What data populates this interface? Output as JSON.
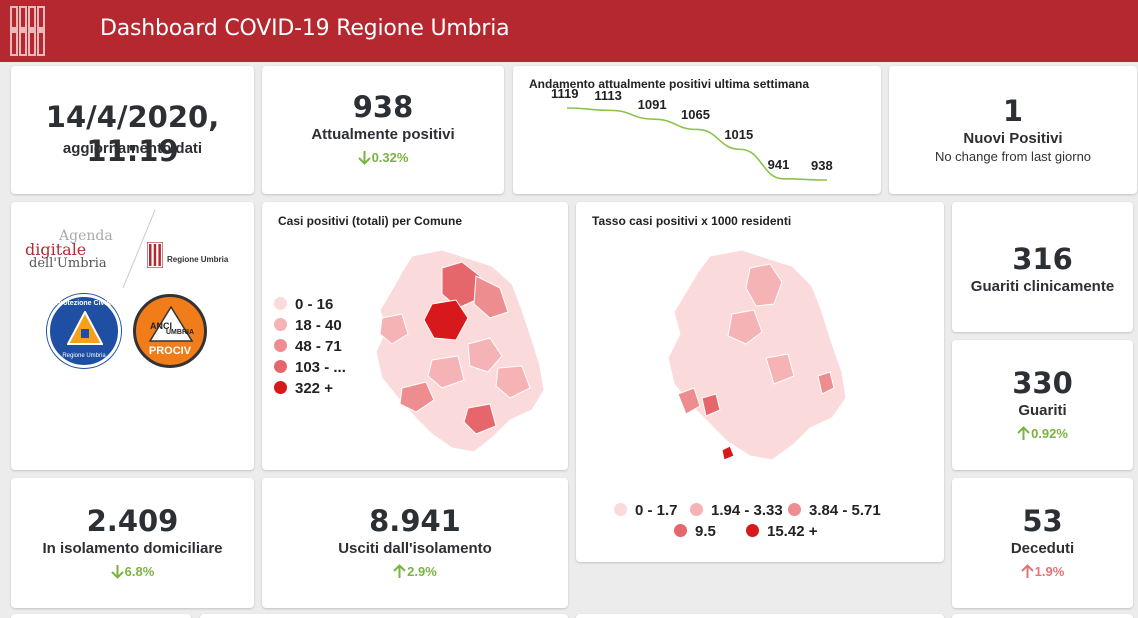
{
  "header": {
    "title": "Dashboard COVID-19 Regione Umbria"
  },
  "update": {
    "datetime": "14/4/2020, 11:19",
    "label": "aggiornamento dati"
  },
  "attualmente_positivi": {
    "value": "938",
    "label": "Attualmente positivi",
    "delta": "0.32%",
    "direction": "down"
  },
  "trend": {
    "title": "Andamento attualmente positivi ultima settimana",
    "chart_data": {
      "type": "line",
      "title": "Andamento attualmente positivi ultima settimana",
      "values": [
        1119,
        1113,
        1091,
        1065,
        1015,
        941,
        938
      ],
      "labels": [
        "1119",
        "1113",
        "1091",
        "1065",
        "1015",
        "941",
        "938"
      ],
      "line_color": "#8bc34a"
    }
  },
  "nuovi_positivi": {
    "value": "1",
    "label": "Nuovi Positivi",
    "note": "No change from last giorno"
  },
  "logos": {
    "agenda_line1": "Agenda",
    "agenda_line2": "digitale",
    "agenda_line3": "dell'Umbria",
    "regione": "Regione Umbria",
    "protezione_civile": "Protezione Civile",
    "protezione_sub": "Regione Umbria",
    "anci_line1": "ANCI",
    "anci_line2": "UMBRIA",
    "anci_line3": "PROCIV"
  },
  "map_comune": {
    "title": "Casi positivi (totali) per Comune",
    "legend": [
      {
        "label": "0 - 16",
        "color": "#fbdadb"
      },
      {
        "label": "18 - 40",
        "color": "#f5b3b5"
      },
      {
        "label": "48 - 71",
        "color": "#ee8d90"
      },
      {
        "label": "103 - ...",
        "color": "#e6676b"
      },
      {
        "label": "322 +",
        "color": "#d7191c"
      }
    ]
  },
  "map_tasso": {
    "title": "Tasso casi positivi x 1000 residenti",
    "legend": [
      {
        "label": "0 - 1.7",
        "color": "#fbdadb"
      },
      {
        "label": "1.94 - 3.33",
        "color": "#f5b3b5"
      },
      {
        "label": "3.84 - 5.71",
        "color": "#ee8d90"
      },
      {
        "label": "9.5",
        "color": "#e6676b"
      },
      {
        "label": "15.42 +",
        "color": "#d7191c"
      }
    ]
  },
  "guariti_clinicamente": {
    "value": "316",
    "label": "Guariti clinicamente"
  },
  "guariti": {
    "value": "330",
    "label": "Guariti",
    "delta": "0.92%",
    "direction": "up"
  },
  "isolamento": {
    "value": "2.409",
    "label": "In isolamento domiciliare",
    "delta": "6.8%",
    "direction": "down"
  },
  "usciti": {
    "value": "8.941",
    "label": "Usciti dall'isolamento",
    "delta": "2.9%",
    "direction": "up"
  },
  "deceduti": {
    "value": "53",
    "label": "Deceduti",
    "delta": "1.9%",
    "direction": "up"
  }
}
